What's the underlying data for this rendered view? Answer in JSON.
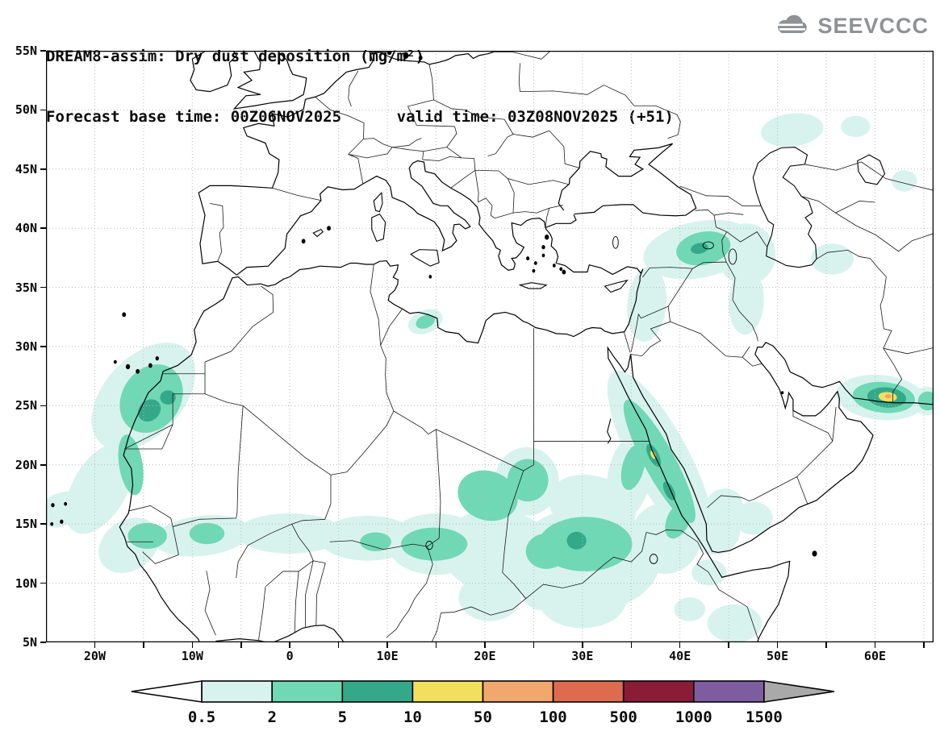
{
  "header": {
    "title_line1": "DREAM8-assim: Dry dust deposition (mg/m²)",
    "title_line2": "Forecast base time: 00Z06NOV2025      valid time: 03Z08NOV2025 (+51)",
    "logo_text": "SEEVCCC"
  },
  "map": {
    "lon_min": -25,
    "lon_max": 66,
    "lat_min": 5,
    "lat_max": 55,
    "grid_step": 5,
    "lat_labels": [
      {
        "value": 55,
        "label": "55N"
      },
      {
        "value": 50,
        "label": "50N"
      },
      {
        "value": 45,
        "label": "45N"
      },
      {
        "value": 40,
        "label": "40N"
      },
      {
        "value": 35,
        "label": "35N"
      },
      {
        "value": 30,
        "label": "30N"
      },
      {
        "value": 25,
        "label": "25N"
      },
      {
        "value": 20,
        "label": "20N"
      },
      {
        "value": 15,
        "label": "15N"
      },
      {
        "value": 10,
        "label": "10N"
      },
      {
        "value": 5,
        "label": "5N"
      }
    ],
    "lon_labels": [
      {
        "value": -20,
        "label": "20W"
      },
      {
        "value": -10,
        "label": "10W"
      },
      {
        "value": 0,
        "label": "0"
      },
      {
        "value": 10,
        "label": "10E"
      },
      {
        "value": 20,
        "label": "20E"
      },
      {
        "value": 30,
        "label": "30E"
      },
      {
        "value": 40,
        "label": "40E"
      },
      {
        "value": 50,
        "label": "50E"
      },
      {
        "value": 60,
        "label": "60E"
      }
    ]
  },
  "chart_data": {
    "type": "heatmap",
    "title": "DREAM8-assim: Dry dust deposition (mg/m²)",
    "unit": "mg/m²",
    "forecast_base_time": "00Z06NOV2025",
    "valid_time": "03Z08NOV2025 (+51)",
    "lon_range": [
      -25,
      66
    ],
    "lat_range": [
      5,
      55
    ],
    "grid": "5 deg dotted",
    "legend_position": "bottom",
    "colorbar": {
      "levels": [
        "0.5",
        "2",
        "5",
        "10",
        "50",
        "100",
        "500",
        "1000",
        "1500"
      ],
      "colors": [
        "#ffffff",
        "#d8f3ed",
        "#70d8b5",
        "#33a98a",
        "#f2df5e",
        "#f2a76c",
        "#de6b50",
        "#8a1c38",
        "#7e5ca0",
        "#a9a9a9"
      ]
    },
    "dust_areas": [
      {
        "level": "0.5-2",
        "e": [
          -15.0,
          25.8,
          6.0,
          3.6,
          -35
        ]
      },
      {
        "level": "0.5-2",
        "e": [
          -19.5,
          18.0,
          4.5,
          2.6,
          -50
        ]
      },
      {
        "level": "0.5-2",
        "e": [
          -23.2,
          16.3,
          2.6,
          1.4,
          -10
        ]
      },
      {
        "level": "0.5-2",
        "e": [
          -16.5,
          13.2,
          3.2,
          2.2,
          -20
        ]
      },
      {
        "level": "0.5-2",
        "e": [
          -9.0,
          14.0,
          5.0,
          1.7,
          -5
        ]
      },
      {
        "level": "0.5-2",
        "e": [
          0.0,
          14.2,
          5.5,
          1.7,
          0
        ]
      },
      {
        "level": "0.5-2",
        "e": [
          8.0,
          13.8,
          5.0,
          1.9,
          0
        ]
      },
      {
        "level": "0.5-2",
        "e": [
          15.0,
          13.3,
          5.0,
          2.6,
          0
        ]
      },
      {
        "level": "0.5-2",
        "e": [
          21.5,
          12.6,
          6.0,
          3.6,
          5
        ]
      },
      {
        "level": "0.5-2",
        "e": [
          30.5,
          12.0,
          7.5,
          4.4,
          0
        ]
      },
      {
        "level": "0.5-2",
        "e": [
          30.0,
          8.6,
          4.5,
          2.4,
          0
        ]
      },
      {
        "level": "0.5-2",
        "e": [
          20.5,
          8.8,
          3.2,
          2.0,
          0
        ]
      },
      {
        "level": "0.5-2",
        "e": [
          24.3,
          18.6,
          3.3,
          2.9,
          0
        ]
      },
      {
        "level": "0.5-2",
        "e": [
          31.0,
          16.5,
          4.5,
          2.6,
          10
        ]
      },
      {
        "level": "0.5-2",
        "e": [
          38.5,
          13.8,
          3.6,
          3.0,
          0
        ]
      },
      {
        "level": "0.5-2",
        "e": [
          43.6,
          14.6,
          2.6,
          2.2,
          0
        ]
      },
      {
        "level": "0.5-2",
        "e": [
          38.0,
          20.5,
          8.8,
          2.8,
          56
        ]
      },
      {
        "level": "0.5-2",
        "e": [
          34.8,
          19.0,
          2.2,
          3.6,
          15
        ]
      },
      {
        "level": "0.5-2",
        "e": [
          36.6,
          33.6,
          2.0,
          3.2,
          8
        ]
      },
      {
        "level": "0.5-2",
        "e": [
          42.0,
          38.2,
          5.8,
          2.4,
          -8
        ]
      },
      {
        "level": "0.5-2",
        "e": [
          46.8,
          37.8,
          3.0,
          2.6,
          0
        ]
      },
      {
        "level": "0.5-2",
        "e": [
          46.8,
          33.8,
          1.8,
          2.8,
          5
        ]
      },
      {
        "level": "0.5-2",
        "e": [
          51.5,
          48.3,
          3.2,
          1.4,
          -5
        ]
      },
      {
        "level": "0.5-2",
        "e": [
          58.0,
          48.6,
          1.5,
          0.9,
          0
        ]
      },
      {
        "level": "0.5-2",
        "e": [
          55.6,
          37.4,
          2.2,
          1.3,
          0
        ]
      },
      {
        "level": "0.5-2",
        "e": [
          60.6,
          25.7,
          4.6,
          1.9,
          4
        ]
      },
      {
        "level": "0.5-2",
        "e": [
          65.3,
          25.4,
          1.6,
          1.2,
          0
        ]
      },
      {
        "level": "0.5-2",
        "e": [
          13.9,
          32.1,
          1.8,
          1.0,
          -15
        ]
      },
      {
        "level": "0.5-2",
        "e": [
          44.6,
          16.8,
          1.8,
          1.2,
          0
        ]
      },
      {
        "level": "0.5-2",
        "e": [
          43.0,
          10.9,
          1.8,
          1.1,
          0
        ]
      },
      {
        "level": "0.5-2",
        "e": [
          45.6,
          6.6,
          2.8,
          1.6,
          0
        ]
      },
      {
        "level": "0.5-2",
        "e": [
          41.0,
          7.8,
          1.6,
          1.0,
          0
        ]
      },
      {
        "level": "0.5-2",
        "e": [
          26.0,
          9.2,
          2.2,
          1.5,
          0
        ]
      },
      {
        "level": "0.5-2",
        "e": [
          63.0,
          44.0,
          1.3,
          0.9,
          0
        ]
      },
      {
        "level": "0.5-2",
        "e": [
          47.5,
          15.5,
          2.0,
          1.4,
          0
        ]
      },
      {
        "level": "0.5-2",
        "e": [
          -24.0,
          15.6,
          1.5,
          0.9,
          0
        ]
      },
      {
        "level": "2-5",
        "e": [
          -14.2,
          25.6,
          3.4,
          2.7,
          -30
        ]
      },
      {
        "level": "2-5",
        "e": [
          -16.3,
          20.0,
          1.2,
          2.6,
          -12
        ]
      },
      {
        "level": "2-5",
        "e": [
          -14.6,
          14.0,
          2.0,
          1.1,
          0
        ]
      },
      {
        "level": "2-5",
        "e": [
          14.8,
          13.3,
          3.4,
          1.4,
          0
        ]
      },
      {
        "level": "2-5",
        "e": [
          20.3,
          17.4,
          3.1,
          2.1,
          10
        ]
      },
      {
        "level": "2-5",
        "e": [
          24.4,
          18.7,
          2.1,
          1.8,
          0
        ]
      },
      {
        "level": "2-5",
        "e": [
          30.3,
          13.3,
          4.8,
          2.3,
          0
        ]
      },
      {
        "level": "2-5",
        "e": [
          26.3,
          12.7,
          2.1,
          1.5,
          0
        ]
      },
      {
        "level": "2-5",
        "e": [
          37.9,
          20.3,
          6.2,
          1.5,
          56
        ]
      },
      {
        "level": "2-5",
        "e": [
          35.2,
          19.8,
          1.1,
          2.0,
          20
        ]
      },
      {
        "level": "2-5",
        "e": [
          39.8,
          15.3,
          1.1,
          1.7,
          35
        ]
      },
      {
        "level": "2-5",
        "e": [
          42.4,
          38.3,
          2.8,
          1.4,
          -8
        ]
      },
      {
        "level": "2-5",
        "e": [
          60.9,
          25.7,
          3.2,
          1.3,
          4
        ]
      },
      {
        "level": "2-5",
        "e": [
          65.4,
          25.4,
          1.0,
          0.8,
          0
        ]
      },
      {
        "level": "2-5",
        "e": [
          13.9,
          32.1,
          1.0,
          0.55,
          -15
        ]
      },
      {
        "level": "2-5",
        "e": [
          8.8,
          13.5,
          1.6,
          0.8,
          0
        ]
      },
      {
        "level": "2-5",
        "e": [
          -8.5,
          14.2,
          1.8,
          0.9,
          0
        ]
      },
      {
        "level": "5-10",
        "e": [
          -14.4,
          24.6,
          1.2,
          0.9,
          -20
        ]
      },
      {
        "level": "5-10",
        "e": [
          -12.5,
          25.7,
          0.8,
          0.6,
          0
        ]
      },
      {
        "level": "5-10",
        "e": [
          29.4,
          13.6,
          1.0,
          0.75,
          0
        ]
      },
      {
        "level": "5-10",
        "e": [
          37.3,
          20.8,
          1.1,
          0.5,
          56
        ]
      },
      {
        "level": "5-10",
        "e": [
          38.9,
          17.8,
          0.9,
          0.45,
          56
        ]
      },
      {
        "level": "5-10",
        "e": [
          61.2,
          25.7,
          2.0,
          0.85,
          4
        ]
      },
      {
        "level": "5-10",
        "e": [
          42.0,
          38.3,
          0.9,
          0.45,
          -8
        ]
      },
      {
        "level": "10-50",
        "e": [
          61.3,
          25.75,
          0.95,
          0.4,
          4
        ]
      },
      {
        "level": "10-50",
        "e": [
          37.25,
          20.85,
          0.4,
          0.22,
          56
        ]
      },
      {
        "level": "50-100",
        "e": [
          61.35,
          25.8,
          0.35,
          0.18,
          0
        ]
      }
    ]
  }
}
